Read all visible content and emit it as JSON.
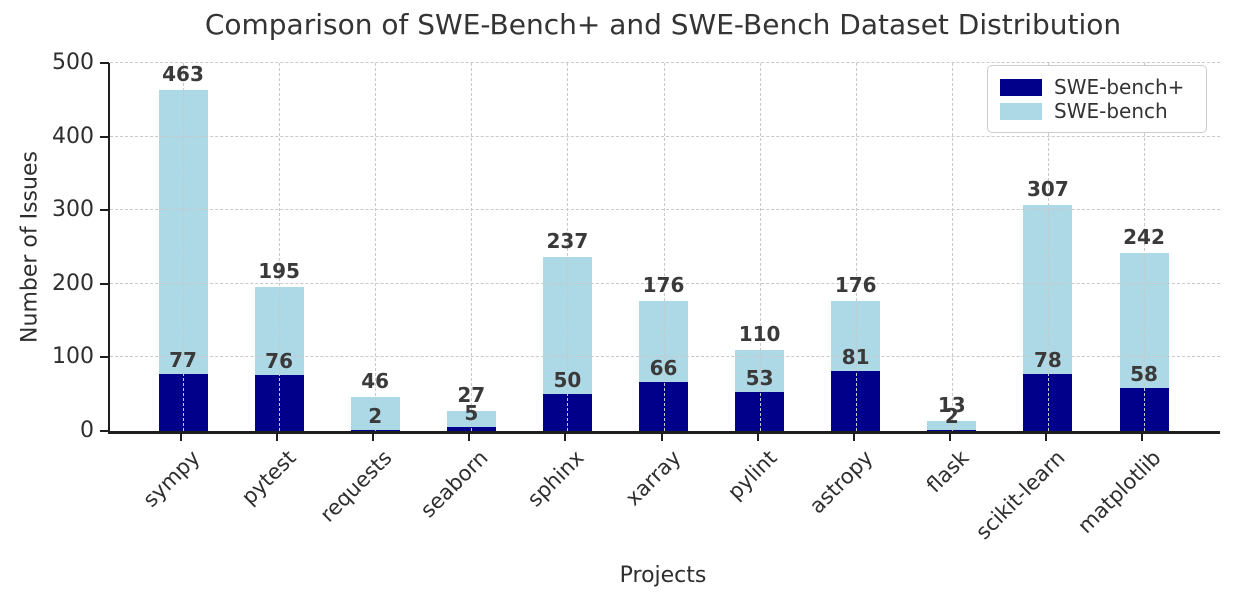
{
  "chart_data": {
    "type": "bar",
    "mode": "overlay",
    "title": "Comparison of SWE-Bench+ and SWE-Bench Dataset Distribution",
    "xlabel": "Projects",
    "ylabel": "Number of Issues",
    "categories": [
      "sympy",
      "pytest",
      "requests",
      "seaborn",
      "sphinx",
      "xarray",
      "pylint",
      "astropy",
      "flask",
      "scikit-learn",
      "matplotlib"
    ],
    "series": [
      {
        "name": "SWE-bench+",
        "color": "#00008B",
        "values": [
          77,
          76,
          2,
          5,
          50,
          66,
          53,
          81,
          2,
          78,
          58
        ]
      },
      {
        "name": "SWE-bench",
        "color": "#ADD8E6",
        "values": [
          463,
          195,
          46,
          27,
          237,
          176,
          110,
          176,
          13,
          307,
          242
        ]
      }
    ],
    "ylim": [
      0,
      500
    ],
    "yticks": [
      0,
      100,
      200,
      300,
      400,
      500
    ],
    "grid": "dashed",
    "legend_position": "upper right",
    "value_label_color": "#3a3a3a"
  }
}
